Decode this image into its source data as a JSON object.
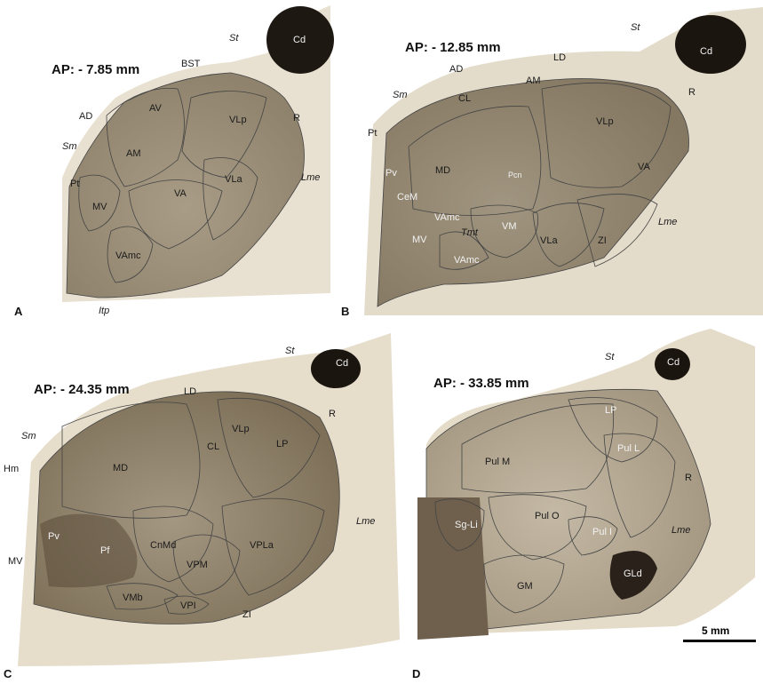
{
  "panels": {
    "a": {
      "letter": "A",
      "ap": "AP: - 7.85 mm",
      "labels": {
        "cd": "Cd",
        "st": "St",
        "bst": "BST",
        "ad": "AD",
        "sm": "Sm",
        "av": "AV",
        "vlp": "VLp",
        "r": "R",
        "am": "AM",
        "lme": "Lme",
        "pt": "Pt",
        "va": "VA",
        "vla": "VLa",
        "mv": "MV",
        "vamc": "VAmc",
        "itp": "Itp"
      }
    },
    "b": {
      "letter": "B",
      "ap": "AP: - 12.85 mm",
      "labels": {
        "st": "St",
        "cd": "Cd",
        "ld": "LD",
        "ad": "AD",
        "am": "AM",
        "sm": "Sm",
        "cl": "CL",
        "r": "R",
        "vlp": "VLp",
        "pt": "Pt",
        "md": "MD",
        "pv": "Pv",
        "pcn": "Pcn",
        "va": "VA",
        "cem": "CeM",
        "vamc": "VAmc",
        "lme": "Lme",
        "vm": "VM",
        "tmt": "Tmt",
        "mv": "MV",
        "vla": "VLa",
        "zi": "ZI",
        "vamc2": "VAmc"
      }
    },
    "c": {
      "letter": "C",
      "ap": "AP: - 24.35 mm",
      "labels": {
        "st": "St",
        "cd": "Cd",
        "ld": "LD",
        "r": "R",
        "vlp": "VLp",
        "sm": "Sm",
        "cl": "CL",
        "lp": "LP",
        "hm": "Hm",
        "md": "MD",
        "lme": "Lme",
        "pv": "Pv",
        "cnmd": "CnMd",
        "vpla": "VPLa",
        "pf": "Pf",
        "mv": "MV",
        "vpm": "VPM",
        "vmb": "VMb",
        "vpi": "VPI",
        "zi": "ZI"
      }
    },
    "d": {
      "letter": "D",
      "ap": "AP: - 33.85 mm",
      "labels": {
        "st": "St",
        "cd": "Cd",
        "lp": "LP",
        "pulm": "Pul M",
        "pull": "Pul L",
        "r": "R",
        "sgli": "Sg-Li",
        "pulo": "Pul O",
        "lme": "Lme",
        "puli": "Pul I",
        "gm": "GM",
        "gld": "GLd"
      }
    }
  },
  "scale_bar": {
    "label": "5 mm"
  }
}
